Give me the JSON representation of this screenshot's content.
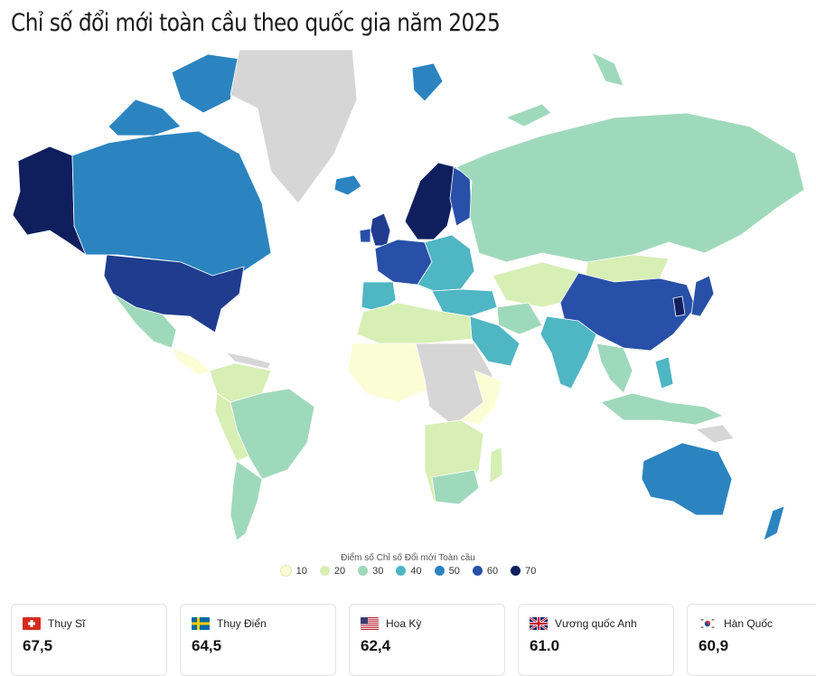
{
  "title": "Chỉ số đổi mới toàn cầu theo quốc gia năm 2025",
  "legend": {
    "title": "Điểm số Chỉ số Đổi mới Toàn cầu",
    "items": [
      {
        "label": "10",
        "color": "#fbfdd4"
      },
      {
        "label": "20",
        "color": "#d7efb4"
      },
      {
        "label": "30",
        "color": "#9fd9bb"
      },
      {
        "label": "40",
        "color": "#4fb6c4"
      },
      {
        "label": "50",
        "color": "#2b84c0"
      },
      {
        "label": "60",
        "color": "#2850a8"
      },
      {
        "label": "70",
        "color": "#0f1f5e"
      }
    ]
  },
  "no_data_color": "#d6d6d6",
  "cards": [
    {
      "country": "Thụy Sĩ",
      "value": "67,5",
      "flag": "switzerland-flag-icon"
    },
    {
      "country": "Thụy Điển",
      "value": "64,5",
      "flag": "sweden-flag-icon"
    },
    {
      "country": "Hoa Kỳ",
      "value": "62,4",
      "flag": "usa-flag-icon"
    },
    {
      "country": "Vương quốc Anh",
      "value": "61.0",
      "flag": "uk-flag-icon"
    },
    {
      "country": "Hàn Quốc",
      "value": "60,9",
      "flag": "south-korea-flag-icon"
    }
  ]
}
